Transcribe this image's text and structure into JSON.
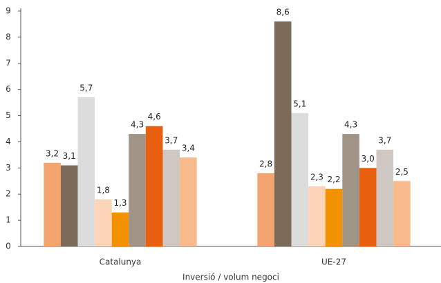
{
  "chart_data": {
    "type": "bar",
    "x_label": "Inversió / volum negoci",
    "categories": [
      "Catalunya",
      "UE-27"
    ],
    "series": [
      {
        "color": "#f4a46e",
        "values": [
          3.2,
          2.8
        ],
        "value_labels": [
          "3,2",
          "2,8"
        ]
      },
      {
        "color": "#7b6b58",
        "values": [
          3.1,
          8.6
        ],
        "value_labels": [
          "3,1",
          "8,6"
        ]
      },
      {
        "color": "#dcdcdc",
        "values": [
          5.7,
          5.1
        ],
        "value_labels": [
          "5,7",
          "5,1"
        ]
      },
      {
        "color": "#fcd5b8",
        "values": [
          1.8,
          2.3
        ],
        "value_labels": [
          "1,8",
          "2,3"
        ]
      },
      {
        "color": "#f39200",
        "values": [
          1.3,
          2.2
        ],
        "value_labels": [
          "1,3",
          "2,2"
        ]
      },
      {
        "color": "#a09486",
        "values": [
          4.3,
          4.3
        ],
        "value_labels": [
          "4,3",
          "4,3"
        ]
      },
      {
        "color": "#e8600f",
        "values": [
          4.6,
          3.0
        ],
        "value_labels": [
          "4,6",
          "3,0"
        ]
      },
      {
        "color": "#cfc8c2",
        "values": [
          3.7,
          3.7
        ],
        "value_labels": [
          "3,7",
          "3,7"
        ]
      },
      {
        "color": "#f9bb8d",
        "values": [
          3.4,
          2.5
        ],
        "value_labels": [
          "3,4",
          "2,5"
        ]
      }
    ],
    "ylim": [
      0,
      9
    ],
    "yticks": [
      0,
      1,
      2,
      3,
      4,
      5,
      6,
      7,
      8,
      9
    ],
    "grid": false
  }
}
